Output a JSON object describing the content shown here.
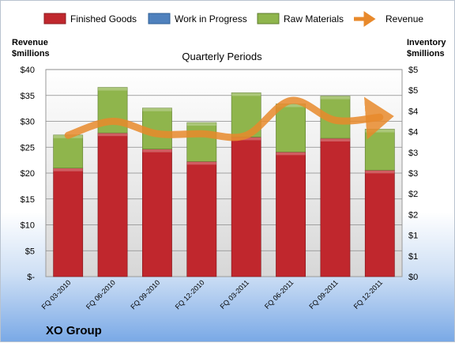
{
  "chart_data": {
    "type": "bar",
    "title": "Quarterly Periods",
    "company": "XO Group",
    "left_axis": {
      "label_line1": "Revenue",
      "label_line2": "$millions",
      "min": 0,
      "max": 40,
      "ticks": [
        "$-",
        "$5",
        "$10",
        "$15",
        "$20",
        "$25",
        "$30",
        "$35",
        "$40"
      ]
    },
    "right_axis": {
      "label_line1": "Inventory",
      "label_line2": "$millions",
      "min": 0,
      "max": 5,
      "ticks": [
        "$0",
        "$1",
        "$1",
        "$2",
        "$2",
        "$3",
        "$3",
        "$4",
        "$4",
        "$5",
        "$5"
      ]
    },
    "categories": [
      "FQ 03-2010",
      "FQ 06-2010",
      "FQ 09-2010",
      "FQ 12-2010",
      "FQ 03-2011",
      "FQ 06-2011",
      "FQ 09-2011",
      "FQ 12-2011"
    ],
    "series": [
      {
        "name": "Finished Goods",
        "kind": "bar",
        "color": "#c0272d",
        "values": [
          2.62,
          3.47,
          3.08,
          2.78,
          3.37,
          3.01,
          3.34,
          2.57
        ]
      },
      {
        "name": "Work in Progress",
        "kind": "bar",
        "color": "#4f81bd",
        "values": [
          0,
          0,
          0,
          0,
          0,
          0,
          0,
          0
        ]
      },
      {
        "name": "Raw Materials",
        "kind": "bar",
        "color": "#8fb54c",
        "values": [
          0.8,
          1.1,
          0.99,
          0.94,
          1.07,
          1.16,
          1.02,
          0.99
        ]
      },
      {
        "name": "Revenue",
        "kind": "line",
        "color": "#e8892b",
        "values": [
          27.3,
          30.0,
          27.6,
          27.6,
          27.3,
          34.0,
          30.2,
          30.8
        ]
      }
    ],
    "grid": true,
    "legend_position": "top"
  }
}
